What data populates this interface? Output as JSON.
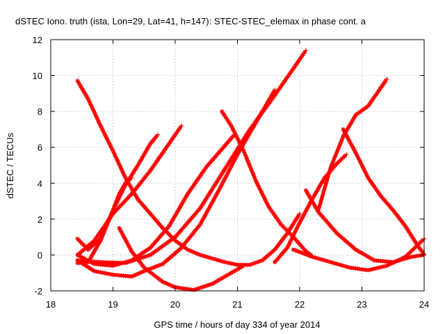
{
  "chart_data": {
    "type": "line",
    "title": "dSTEC Iono. truth (ista, Lon=29, Lat=41, h=147): STEC-STEC_elemax in phase cont. a",
    "xlabel": "GPS time / hours of day 334 of year 2014",
    "ylabel": "dSTEC  / TECUs",
    "xlim": [
      18,
      24
    ],
    "ylim": [
      -2,
      12
    ],
    "xticks": [
      18,
      19,
      20,
      21,
      22,
      23,
      24
    ],
    "yticks": [
      -2,
      0,
      2,
      4,
      6,
      8,
      10,
      12
    ],
    "grid": true,
    "legend": "none",
    "color": "#ff0000",
    "marker": "star",
    "series": [
      {
        "x": [
          18.43,
          18.6,
          18.8,
          19.0,
          19.2,
          19.4,
          19.6,
          19.8,
          20.0,
          20.2,
          20.4,
          20.6,
          20.8,
          21.0,
          21.2,
          21.4,
          21.6,
          21.8,
          22.0
        ],
        "y": [
          9.7,
          8.7,
          7.2,
          5.8,
          4.3,
          3.1,
          2.3,
          1.5,
          0.8,
          0.3,
          0.0,
          -0.2,
          -0.4,
          -0.55,
          -0.55,
          -0.3,
          0.3,
          1.2,
          2.3
        ]
      },
      {
        "x": [
          18.43,
          18.6,
          18.8,
          19.0,
          19.2,
          19.4,
          19.6,
          19.72
        ],
        "y": [
          -0.45,
          -0.4,
          0.8,
          2.5,
          3.9,
          5.0,
          6.2,
          6.7
        ]
      },
      {
        "x": [
          18.43,
          18.7,
          19.0,
          19.3,
          19.6,
          19.9,
          20.1
        ],
        "y": [
          0.0,
          0.8,
          2.3,
          3.4,
          4.7,
          6.2,
          7.2
        ]
      },
      {
        "x": [
          18.43,
          18.6,
          18.8,
          19.0,
          19.1,
          19.2,
          19.3
        ],
        "y": [
          0.9,
          0.3,
          0.9,
          2.5,
          3.4,
          4.0,
          4.3
        ]
      },
      {
        "x": [
          18.43,
          18.7,
          19.0,
          19.3,
          19.6,
          19.9,
          20.2,
          20.5,
          20.8,
          20.95
        ],
        "y": [
          0.0,
          -0.5,
          -0.6,
          -0.3,
          0.4,
          1.6,
          3.4,
          4.9,
          6.1,
          6.7
        ]
      },
      {
        "x": [
          18.43,
          18.8,
          19.2,
          19.6,
          20.0,
          20.4,
          20.8,
          21.2,
          21.6,
          22.0,
          22.1
        ],
        "y": [
          -0.3,
          -0.4,
          -0.45,
          0.0,
          1.0,
          2.6,
          4.8,
          7.0,
          8.9,
          10.9,
          11.4
        ]
      },
      {
        "x": [
          18.43,
          18.7,
          19.0,
          19.3,
          19.5,
          19.8,
          20.1,
          20.4,
          20.7,
          21.0,
          21.3,
          21.6
        ],
        "y": [
          -0.3,
          -0.9,
          -1.1,
          -1.2,
          -0.9,
          -0.5,
          0.4,
          1.7,
          3.6,
          5.6,
          7.4,
          9.2
        ]
      },
      {
        "x": [
          19.1,
          19.3,
          19.5,
          19.8,
          20.0,
          20.3,
          20.6,
          20.9,
          21.1
        ],
        "y": [
          1.5,
          0.2,
          -0.7,
          -1.5,
          -1.8,
          -1.95,
          -1.6,
          -1.0,
          -0.6
        ]
      },
      {
        "x": [
          20.75,
          20.9,
          21.1,
          21.3,
          21.5,
          21.7,
          21.9,
          22.1,
          22.2
        ],
        "y": [
          8.0,
          7.2,
          5.8,
          4.1,
          2.7,
          1.7,
          1.0,
          0.2,
          -0.05
        ]
      },
      {
        "x": [
          21.6,
          21.8,
          22.0,
          22.2,
          22.4,
          22.6,
          22.75
        ],
        "y": [
          -0.4,
          0.4,
          1.8,
          3.1,
          4.3,
          5.1,
          5.6
        ]
      },
      {
        "x": [
          22.1,
          22.3,
          22.6,
          22.9,
          23.2,
          23.5,
          23.8,
          24.0
        ],
        "y": [
          3.6,
          2.4,
          1.2,
          0.3,
          -0.3,
          -0.4,
          -0.1,
          0.0
        ]
      },
      {
        "x": [
          21.9,
          22.2,
          22.5,
          22.8,
          23.1,
          23.4,
          23.7,
          24.0
        ],
        "y": [
          0.3,
          -0.1,
          -0.4,
          -0.7,
          -0.85,
          -0.6,
          -0.1,
          0.9
        ]
      },
      {
        "x": [
          22.3,
          22.5,
          22.7,
          22.9,
          23.1,
          23.4
        ],
        "y": [
          2.5,
          4.9,
          6.6,
          7.8,
          8.3,
          9.8
        ]
      },
      {
        "x": [
          22.7,
          22.9,
          23.1,
          23.3,
          23.5,
          23.7,
          23.9,
          24.0
        ],
        "y": [
          7.0,
          5.7,
          4.3,
          3.3,
          2.5,
          1.6,
          0.5,
          0.05
        ]
      }
    ]
  }
}
